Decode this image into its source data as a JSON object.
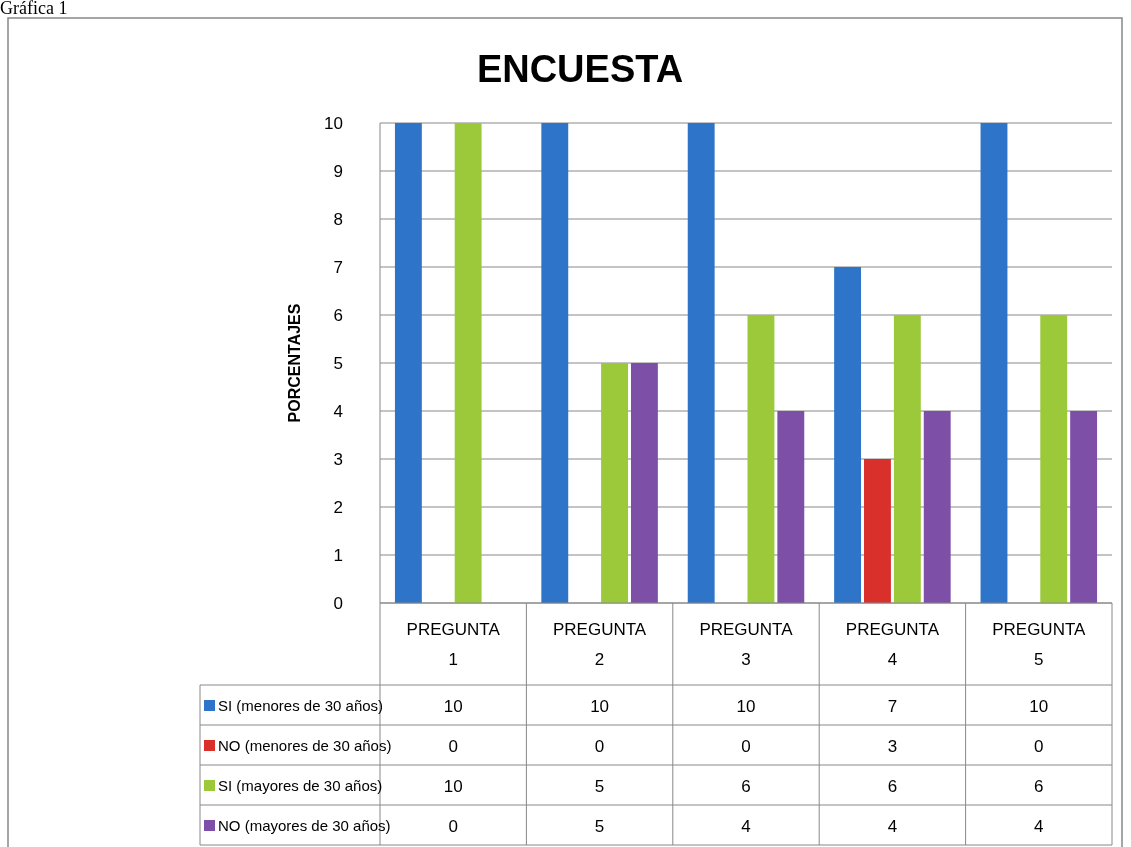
{
  "chart_data": {
    "type": "bar",
    "title": "ENCUESTA",
    "ylabel": "PORCENTAJES",
    "annotations": [
      "Gráfica 1"
    ],
    "categories": [
      "PREGUNTA 1",
      "PREGUNTA 2",
      "PREGUNTA 3",
      "PREGUNTA 4",
      "PREGUNTA 5"
    ],
    "series": [
      {
        "name": "SI (menores de 30 años)",
        "color": "#2e75c9",
        "values": [
          10,
          10,
          10,
          7,
          10
        ]
      },
      {
        "name": "NO (menores de 30 años)",
        "color": "#d9302c",
        "values": [
          0,
          0,
          0,
          3,
          0
        ]
      },
      {
        "name": "SI (mayores de 30 años)",
        "color": "#9bc93a",
        "values": [
          10,
          5,
          6,
          6,
          6
        ]
      },
      {
        "name": "NO (mayores de 30 años)",
        "color": "#7e4fa6",
        "values": [
          0,
          5,
          4,
          4,
          4
        ]
      }
    ],
    "ylim": [
      0,
      10
    ],
    "yticks": [
      0,
      1,
      2,
      3,
      4,
      5,
      6,
      7,
      8,
      9,
      10
    ],
    "grid": "y",
    "legend": "bottom left",
    "data_labels": true
  }
}
